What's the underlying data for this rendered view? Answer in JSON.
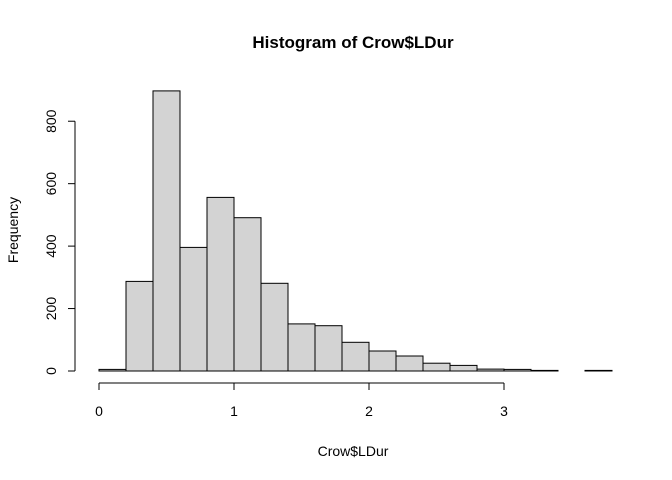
{
  "chart_data": {
    "type": "bar",
    "title": "Histogram of Crow$LDur",
    "xlabel": "Crow$LDur",
    "ylabel": "Frequency",
    "bin_width": 0.2,
    "bins": [
      {
        "x0": 0.0,
        "x1": 0.2,
        "count": 5
      },
      {
        "x0": 0.2,
        "x1": 0.4,
        "count": 287
      },
      {
        "x0": 0.4,
        "x1": 0.6,
        "count": 897
      },
      {
        "x0": 0.6,
        "x1": 0.8,
        "count": 396
      },
      {
        "x0": 0.8,
        "x1": 1.0,
        "count": 556
      },
      {
        "x0": 1.0,
        "x1": 1.2,
        "count": 491
      },
      {
        "x0": 1.2,
        "x1": 1.4,
        "count": 281
      },
      {
        "x0": 1.4,
        "x1": 1.6,
        "count": 151
      },
      {
        "x0": 1.6,
        "x1": 1.8,
        "count": 145
      },
      {
        "x0": 1.8,
        "x1": 2.0,
        "count": 92
      },
      {
        "x0": 2.0,
        "x1": 2.2,
        "count": 64
      },
      {
        "x0": 2.2,
        "x1": 2.4,
        "count": 48
      },
      {
        "x0": 2.4,
        "x1": 2.6,
        "count": 25
      },
      {
        "x0": 2.6,
        "x1": 2.8,
        "count": 18
      },
      {
        "x0": 2.8,
        "x1": 3.0,
        "count": 6
      },
      {
        "x0": 3.0,
        "x1": 3.2,
        "count": 5
      },
      {
        "x0": 3.2,
        "x1": 3.4,
        "count": 2
      },
      {
        "x0": 3.4,
        "x1": 3.6,
        "count": 0
      },
      {
        "x0": 3.6,
        "x1": 3.8,
        "count": 2
      }
    ],
    "xlim": [
      0,
      3.8
    ],
    "ylim": [
      0,
      900
    ],
    "x_ticks": [
      0,
      1,
      2,
      3
    ],
    "x_tick_labels": [
      "0",
      "1",
      "2",
      "3"
    ],
    "y_ticks": [
      0,
      200,
      400,
      600,
      800
    ],
    "y_tick_labels": [
      "0",
      "200",
      "400",
      "600",
      "800"
    ],
    "grid": false,
    "legend": "none",
    "colors": {
      "bar_fill": "#d3d3d3",
      "bar_stroke": "#000000"
    }
  }
}
